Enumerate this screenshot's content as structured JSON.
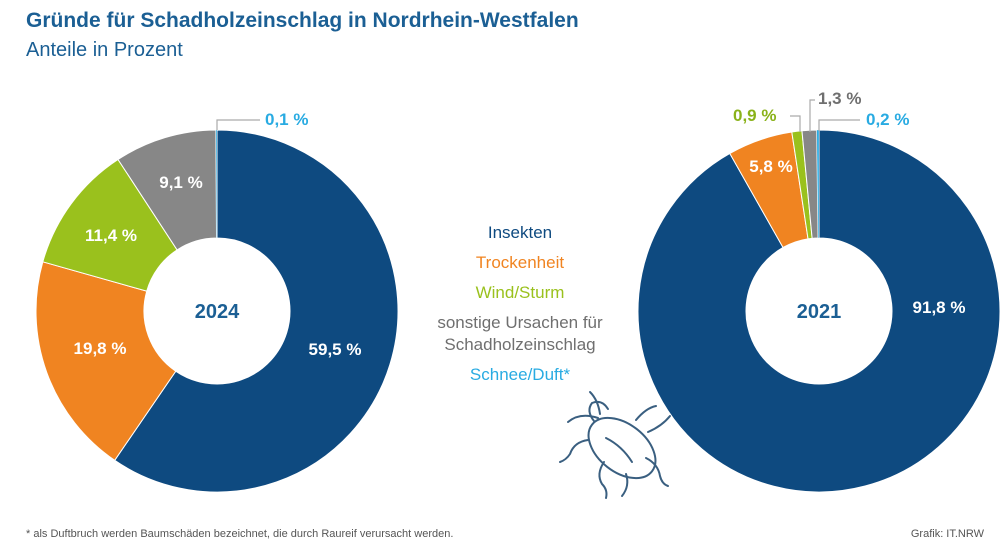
{
  "header": {
    "title": "Gründe für Schadholzeinschlag in Nordrhein-Westfalen",
    "subtitle": "Anteile in Prozent"
  },
  "colors": {
    "insekten": "#0e4a80",
    "trockenheit": "#f08421",
    "wind": "#9ac11d",
    "sonstige": "#878787",
    "schnee": "#29abe2",
    "title": "#1b5f94"
  },
  "legend": [
    {
      "label": "Insekten",
      "color": "#0e4a80"
    },
    {
      "label": "Trockenheit",
      "color": "#f08421"
    },
    {
      "label": "Wind/Sturm",
      "color": "#9ac11d"
    },
    {
      "label": "sonstige Ursachen für Schadholzeinschlag",
      "color": "#6f6f6f"
    },
    {
      "label": "Schnee/Duft*",
      "color": "#29abe2"
    }
  ],
  "chart_data": [
    {
      "type": "pie",
      "center_label": "2024",
      "slices": [
        {
          "category": "Insekten",
          "value": 59.5,
          "label": "59,5 %",
          "color": "#0e4a80"
        },
        {
          "category": "Trockenheit",
          "value": 19.8,
          "label": "19,8 %",
          "color": "#f08421"
        },
        {
          "category": "Wind/Sturm",
          "value": 11.4,
          "label": "11,4 %",
          "color": "#9ac11d"
        },
        {
          "category": "sonstige Ursachen für Schadholzeinschlag",
          "value": 9.1,
          "label": "9,1 %",
          "color": "#878787"
        },
        {
          "category": "Schnee/Duft*",
          "value": 0.1,
          "label": "0,1 %",
          "color": "#29abe2"
        }
      ]
    },
    {
      "type": "pie",
      "center_label": "2021",
      "slices": [
        {
          "category": "Insekten",
          "value": 91.8,
          "label": "91,8 %",
          "color": "#0e4a80"
        },
        {
          "category": "Trockenheit",
          "value": 5.8,
          "label": "5,8 %",
          "color": "#f08421"
        },
        {
          "category": "Wind/Sturm",
          "value": 0.9,
          "label": "0,9 %",
          "color": "#9ac11d"
        },
        {
          "category": "sonstige Ursachen für Schadholzeinschlag",
          "value": 1.3,
          "label": "1,3 %",
          "color": "#878787"
        },
        {
          "category": "Schnee/Duft*",
          "value": 0.2,
          "label": "0,2 %",
          "color": "#29abe2"
        }
      ]
    }
  ],
  "footnote": "* als Duftbruch werden Baumschäden bezeichnet, die durch Raureif verursacht werden.",
  "source": "Grafik: IT.NRW"
}
